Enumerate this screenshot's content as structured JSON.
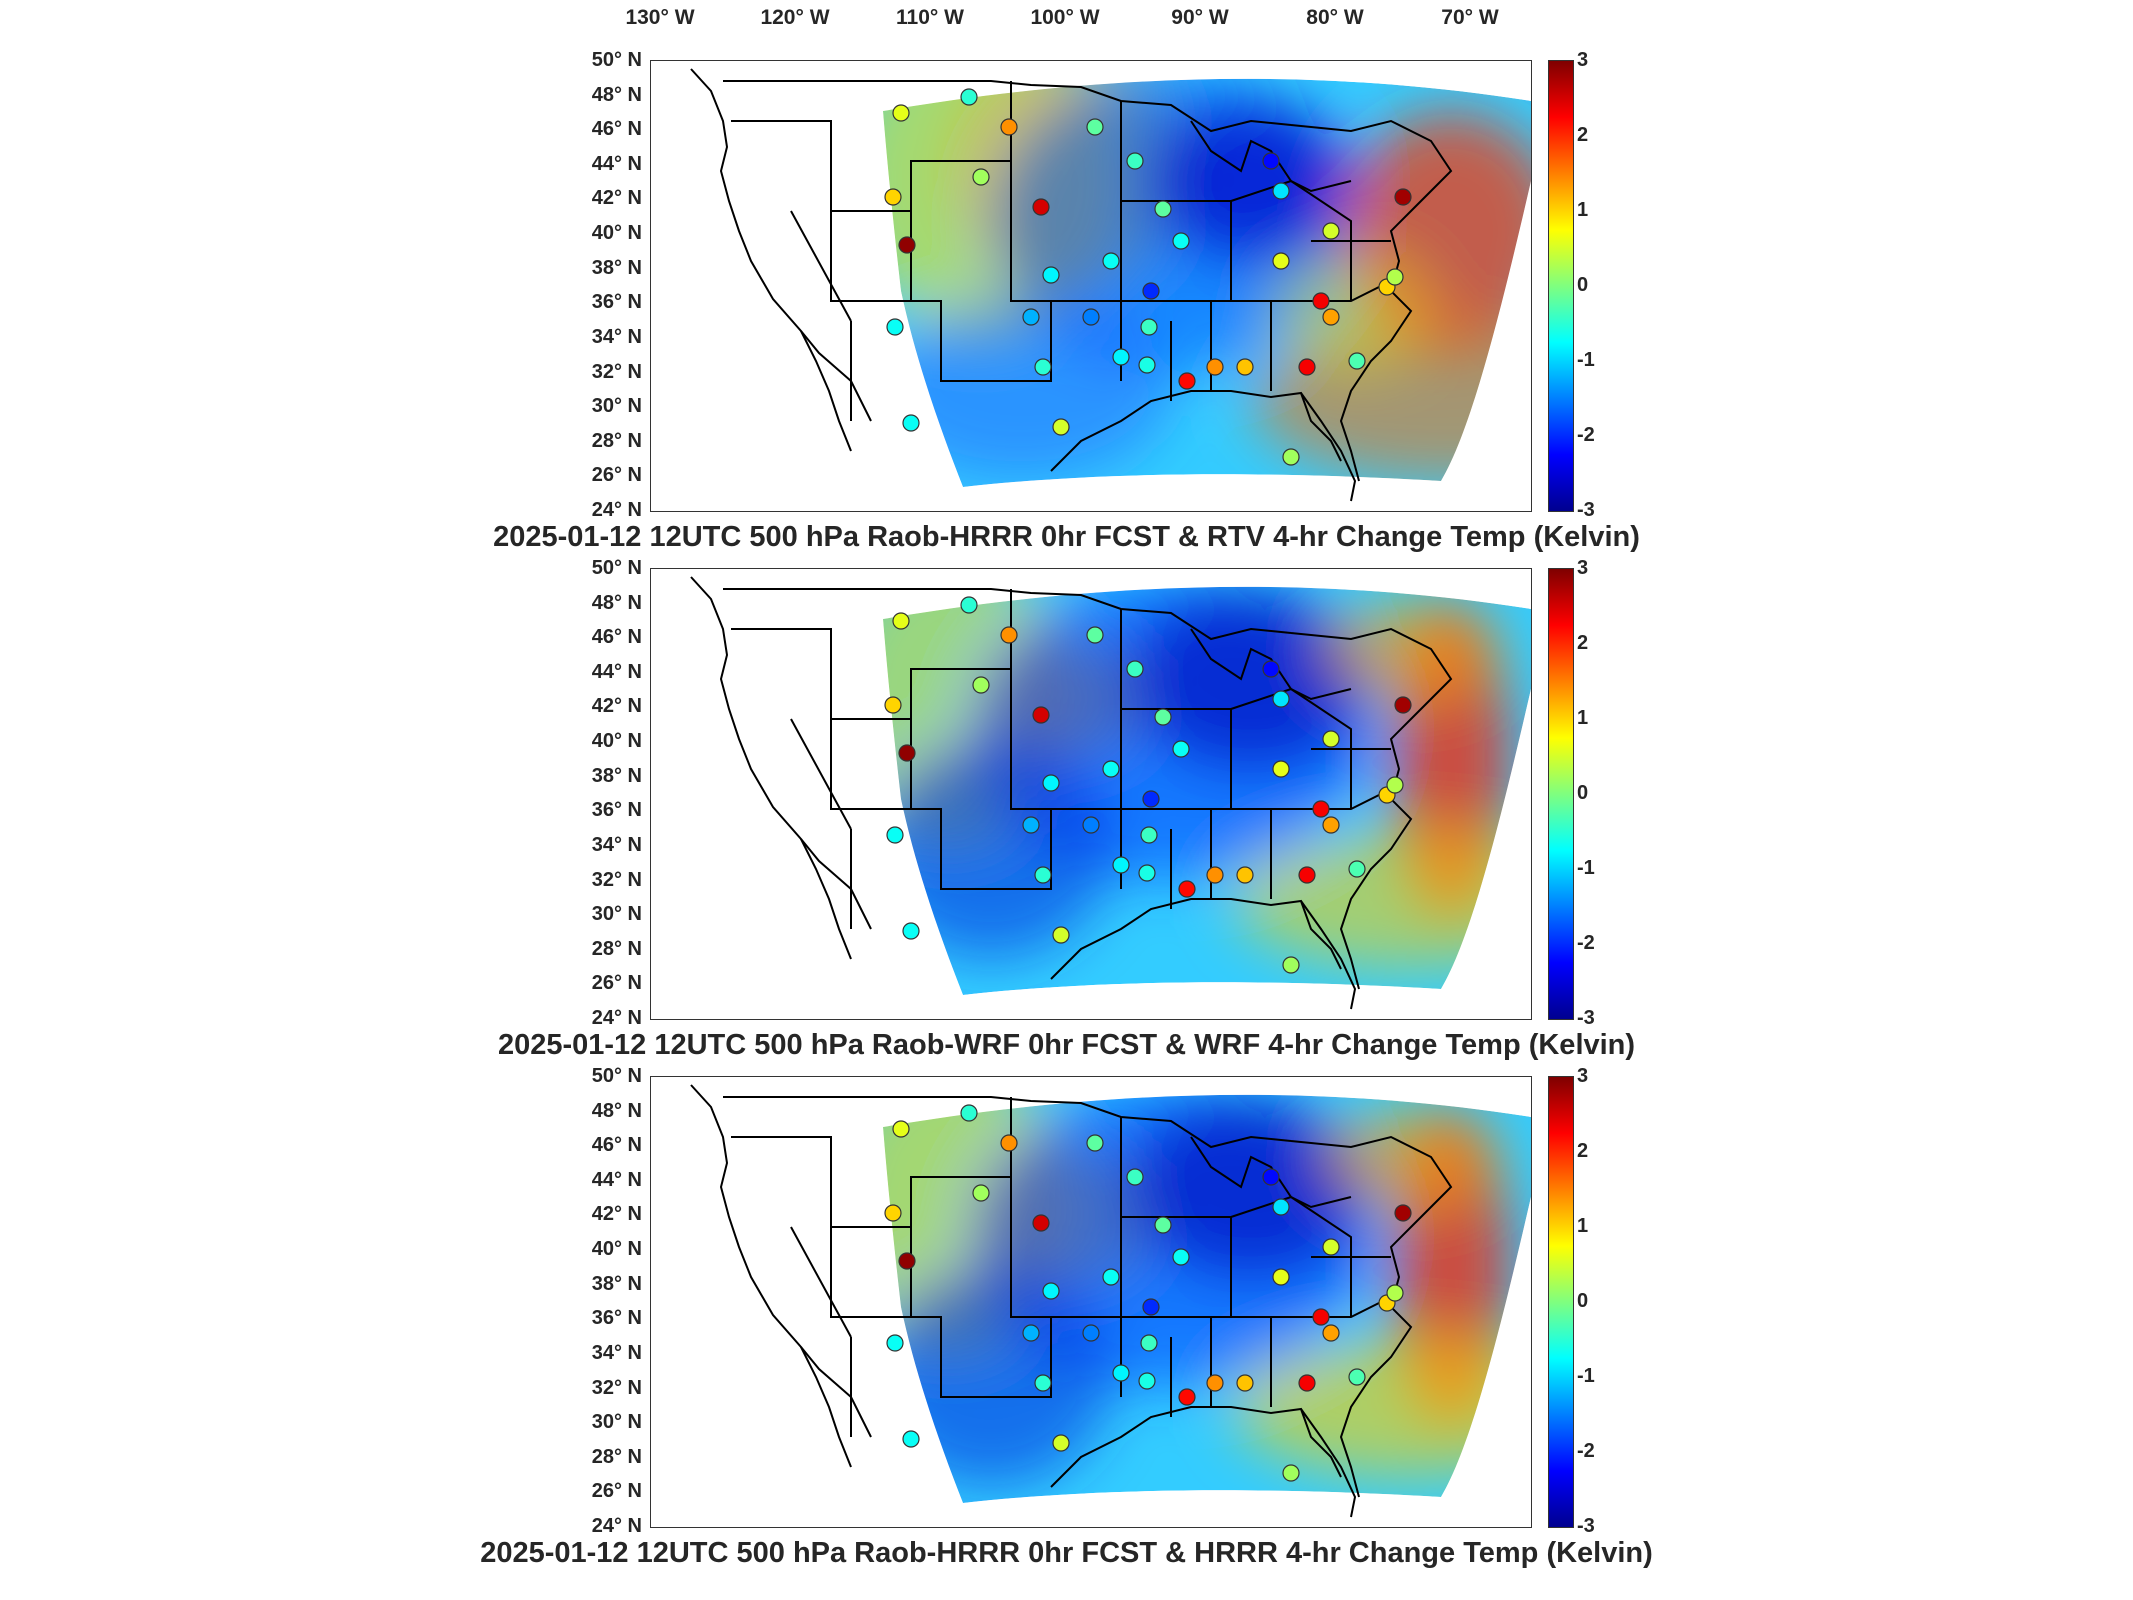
{
  "longitude_labels": [
    "130° W",
    "120° W",
    "110° W",
    "100° W",
    "90° W",
    "80° W",
    "70° W"
  ],
  "latitude_labels": [
    "50° N",
    "48° N",
    "46° N",
    "44° N",
    "42° N",
    "40° N",
    "38° N",
    "36° N",
    "34° N",
    "32° N",
    "30° N",
    "28° N",
    "26° N",
    "24° N"
  ],
  "colorbar": {
    "ticks": [
      "3",
      "2",
      "1",
      "0",
      "-1",
      "-2",
      "-3"
    ],
    "range": [
      -3,
      3
    ],
    "colormap": "jet"
  },
  "panels": [
    {
      "title": "2025-01-12 12UTC 500 hPa Raob-HRRR 0hr FCST & RTV 4-hr Change Temp (Kelvin)"
    },
    {
      "title": "2025-01-12 12UTC 500 hPa Raob-WRF 0hr FCST & WRF 4-hr Change Temp (Kelvin)"
    },
    {
      "title": "2025-01-12 12UTC 500 hPa Raob-HRRR 0hr FCST & HRRR 4-hr Change Temp (Kelvin)"
    }
  ],
  "colors": {
    "border": "#000000",
    "frame": "#333333",
    "text": "#262626"
  }
}
